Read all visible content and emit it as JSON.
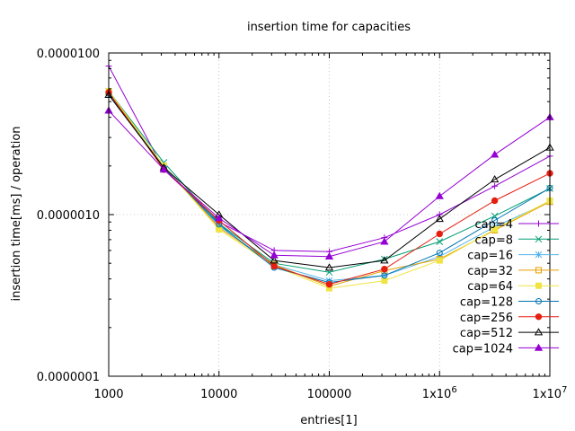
{
  "chart_data": {
    "type": "line",
    "title": "insertion time for capacities",
    "xlabel": "entries[1]",
    "ylabel": "insertion time[ms] / operation",
    "xscale": "log",
    "yscale": "log",
    "xlim": [
      1000,
      10000000
    ],
    "ylim": [
      1e-07,
      1e-05
    ],
    "grid": true,
    "legend_position": "bottom-right",
    "x": [
      1000,
      3162,
      10000,
      31623,
      100000,
      316228,
      1000000,
      3162278,
      10000000
    ],
    "xtick_labels": [
      {
        "value": 1000,
        "label": "1000",
        "sup": ""
      },
      {
        "value": 10000,
        "label": "10000",
        "sup": ""
      },
      {
        "value": 100000,
        "label": "100000",
        "sup": ""
      },
      {
        "value": 1000000,
        "label": "1x10",
        "sup": "6"
      },
      {
        "value": 10000000,
        "label": "1x10",
        "sup": "7"
      }
    ],
    "ytick_labels": [
      {
        "value": 1e-05,
        "label": "0.0000100"
      },
      {
        "value": 1e-06,
        "label": "0.0000010"
      },
      {
        "value": 1e-07,
        "label": "0.0000001"
      }
    ],
    "series": [
      {
        "name": "cap=4",
        "color": "#9400d3",
        "marker": "plus",
        "values": [
          8.3e-06,
          1.9e-06,
          9e-07,
          6e-07,
          5.9e-07,
          7.2e-07,
          1e-06,
          1.5e-06,
          2.3e-06
        ]
      },
      {
        "name": "cap=8",
        "color": "#009e73",
        "marker": "cross",
        "values": [
          5.8e-06,
          2.1e-06,
          8.8e-07,
          5e-07,
          4.4e-07,
          5.3e-07,
          6.8e-07,
          9.8e-07,
          1.45e-06
        ]
      },
      {
        "name": "cap=16",
        "color": "#56b4e9",
        "marker": "star",
        "values": [
          5.6e-06,
          2e-06,
          8.5e-07,
          4.9e-07,
          3.9e-07,
          4.2e-07,
          5.5e-07,
          8.4e-07,
          1.2e-06
        ]
      },
      {
        "name": "cap=32",
        "color": "#e69f00",
        "marker": "open-square",
        "values": [
          5.7e-06,
          2e-06,
          8.3e-07,
          4.9e-07,
          3.6e-07,
          4.5e-07,
          5.3e-07,
          8e-07,
          1.2e-06
        ]
      },
      {
        "name": "cap=64",
        "color": "#f0e442",
        "marker": "filled-square",
        "values": [
          5.8e-06,
          2e-06,
          8.1e-07,
          4.8e-07,
          3.5e-07,
          3.9e-07,
          5.2e-07,
          8.1e-07,
          1.22e-06
        ]
      },
      {
        "name": "cap=128",
        "color": "#0072b2",
        "marker": "open-circle",
        "values": [
          5.6e-06,
          1.95e-06,
          8.7e-07,
          4.7e-07,
          3.8e-07,
          4.2e-07,
          5.8e-07,
          9.2e-07,
          1.46e-06
        ]
      },
      {
        "name": "cap=256",
        "color": "#e51e10",
        "marker": "filled-circle",
        "values": [
          5.7e-06,
          1.9e-06,
          9.2e-07,
          4.8e-07,
          3.7e-07,
          4.6e-07,
          7.6e-07,
          1.22e-06,
          1.8e-06
        ]
      },
      {
        "name": "cap=512",
        "color": "#000000",
        "marker": "open-triangle",
        "values": [
          5.5e-06,
          1.95e-06,
          1e-06,
          5.2e-07,
          4.7e-07,
          5.2e-07,
          9.4e-07,
          1.65e-06,
          2.6e-06
        ]
      },
      {
        "name": "cap=1024",
        "color": "#9400d3",
        "marker": "filled-triangle",
        "values": [
          4.4e-06,
          1.9e-06,
          9.5e-07,
          5.6e-07,
          5.5e-07,
          6.8e-07,
          1.3e-06,
          2.35e-06,
          4e-06
        ]
      }
    ]
  }
}
